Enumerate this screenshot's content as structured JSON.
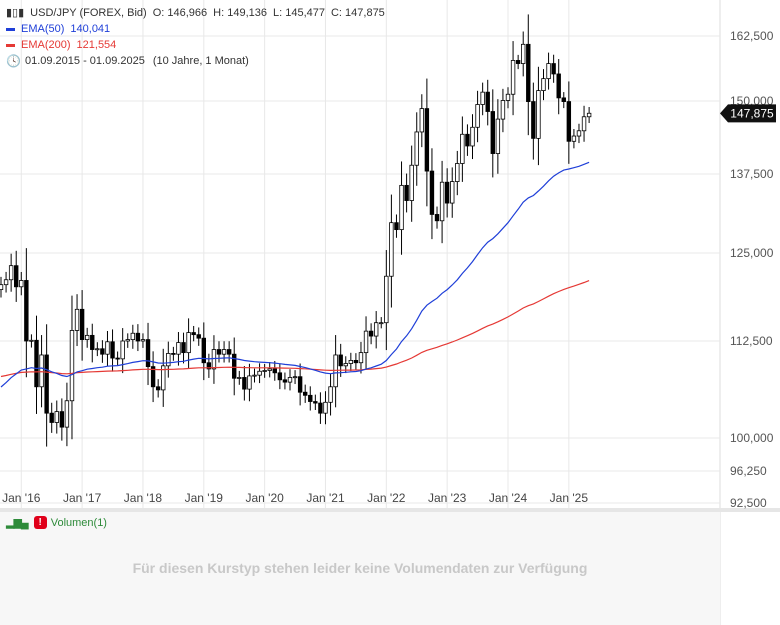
{
  "legend": {
    "instrument": "USD/JPY (FOREX, Bid)",
    "open": "O: 146,966",
    "high": "H: 149,136",
    "low": "L: 145,477",
    "close": "C: 147,875",
    "ema50_label": "EMA(50)",
    "ema50_value": "140,041",
    "ema200_label": "EMA(200)",
    "ema200_value": "121,554",
    "date_range": "01.09.2015 - 01.09.2025",
    "period": "(10 Jahre, 1 Monat)"
  },
  "colors": {
    "ema50": "#1f3fd8",
    "ema200": "#e53935",
    "candle": "#000000",
    "grid": "#e8e8e8"
  },
  "volume": {
    "label": "Volumen(1)",
    "no_data": "Für diesen Kurstyp stehen leider keine Volumendaten zur Verfügung"
  },
  "chart_data": {
    "type": "candlestick",
    "y_ticks": [
      "162,500",
      "150,000",
      "137,500",
      "125,000",
      "112,500",
      "100,000",
      "96,250",
      "92,500"
    ],
    "y_tick_values": [
      162.5,
      150,
      137.5,
      125,
      112.5,
      100,
      96.25,
      92.5
    ],
    "x_ticks": [
      "Jan '16",
      "Jan '17",
      "Jan '18",
      "Jan '19",
      "Jan '20",
      "Jan '21",
      "Jan '22",
      "Jan '23",
      "Jan '24",
      "Jan '25"
    ],
    "last_price_label": "147,875",
    "last_price": 147.875,
    "ohlc_start": "2015-09",
    "ohlc_monthly_close": [
      120.5,
      121.2,
      123.2,
      120.2,
      121.1,
      112.5,
      112.6,
      106.6,
      110.7,
      103.2,
      102.0,
      103.4,
      101.4,
      104.8,
      114.0,
      117.0,
      112.7,
      113.3,
      111.4,
      111.5,
      110.8,
      112.4,
      110.3,
      110.2,
      112.5,
      112.7,
      113.6,
      112.5,
      112.7,
      109.2,
      106.6,
      106.2,
      109.3,
      110.9,
      110.8,
      112.3,
      111.0,
      113.7,
      113.4,
      112.9,
      109.7,
      108.9,
      111.4,
      110.8,
      111.4,
      110.8,
      107.7,
      107.8,
      106.3,
      108.0,
      108.1,
      108.6,
      108.7,
      108.9,
      108.4,
      107.5,
      107.2,
      107.8,
      107.9,
      105.9,
      105.5,
      104.7,
      104.5,
      103.2,
      104.6,
      106.6,
      110.7,
      109.3,
      109.6,
      110.0,
      109.7,
      111.0,
      113.9,
      113.2,
      115.1,
      115.1,
      121.7,
      129.8,
      128.7,
      135.7,
      133.3,
      139.0,
      144.7,
      148.7,
      138.0,
      131.1,
      130.1,
      136.2,
      132.9,
      136.3,
      139.3,
      144.3,
      142.3,
      145.5,
      149.4,
      151.7,
      148.2,
      141.0,
      146.9,
      150.1,
      151.3,
      157.8,
      157.2,
      160.9,
      149.9,
      143.6,
      152.0,
      154.3,
      157.2,
      155.2,
      150.6,
      149.9,
      143.1,
      144.0,
      144.9,
      147.3,
      147.9
    ],
    "ema50_close": 140.041,
    "ema200_close": 121.554
  }
}
